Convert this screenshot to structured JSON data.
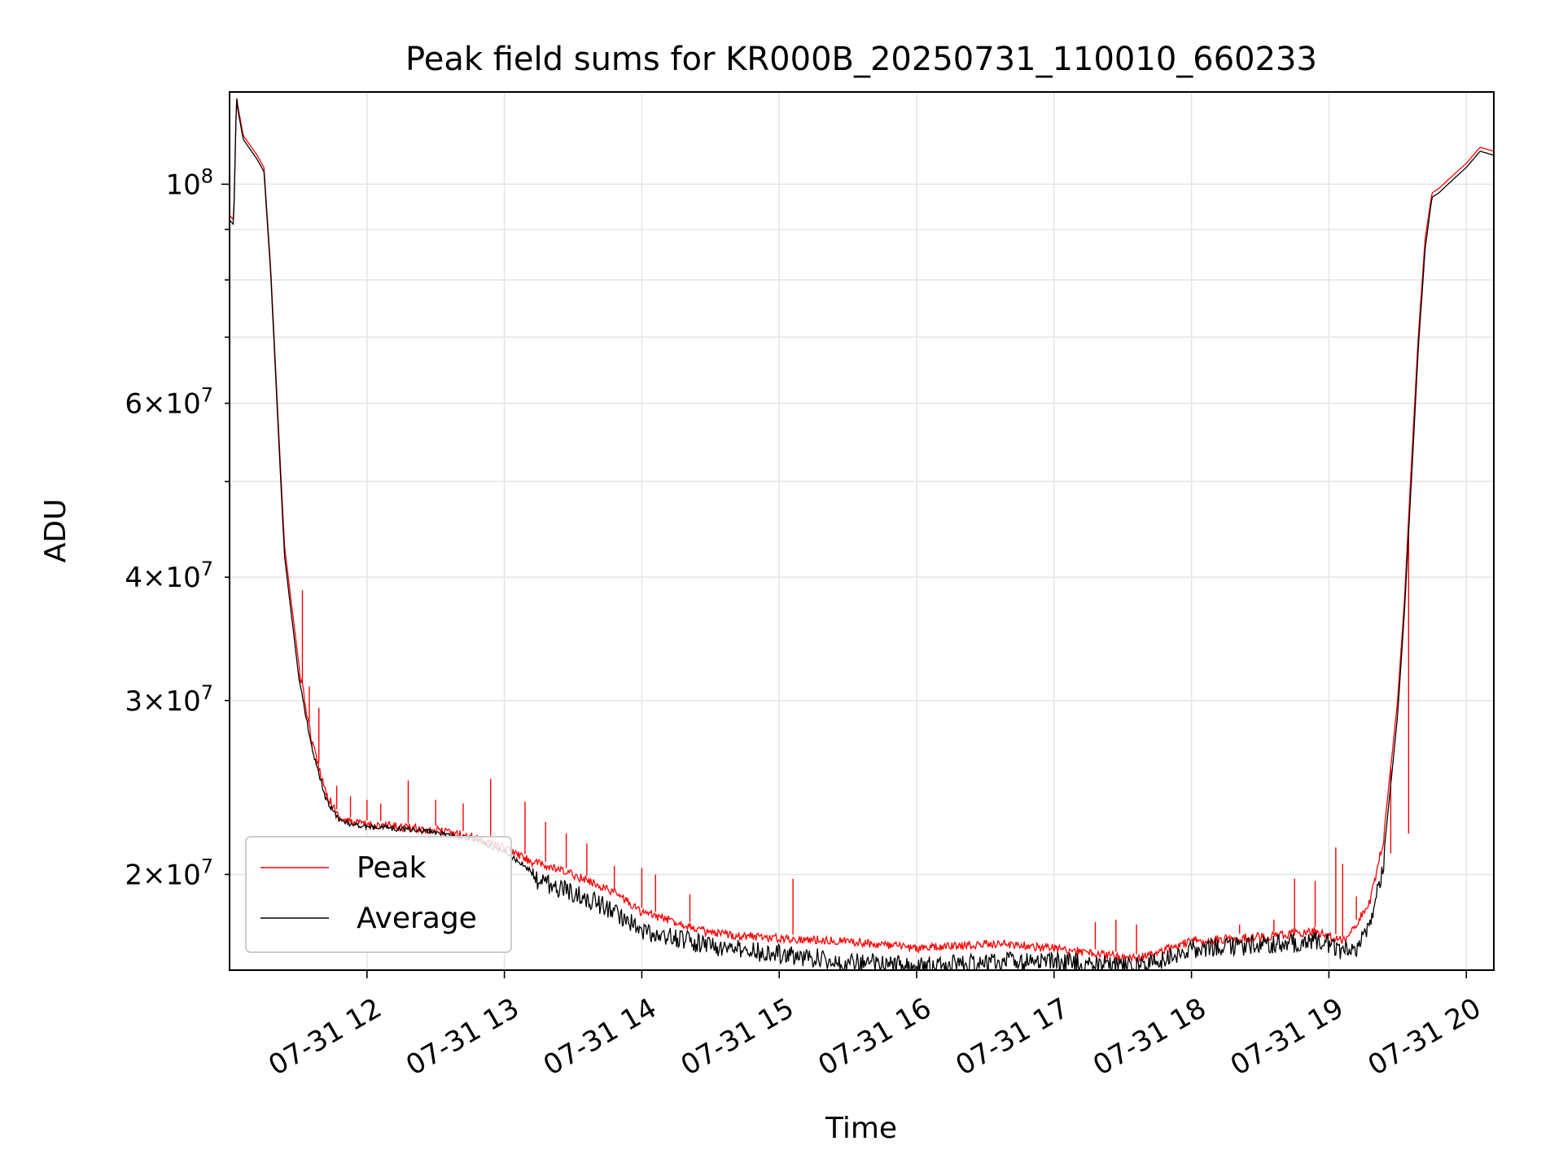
{
  "chart_data": {
    "type": "line",
    "title": "Peak field sums for KR000B_20250731_110010_660233",
    "xlabel": "Time",
    "ylabel": "ADU",
    "yscale": "log",
    "x_unit": "hours (time of day on 2025-07-31)",
    "xlim": [
      11.0,
      20.2
    ],
    "ylim": [
      16000000,
      124000000
    ],
    "grid": true,
    "legend_position": "lower-left",
    "x_ticks": [
      {
        "value": 12,
        "label": "07-31 12"
      },
      {
        "value": 13,
        "label": "07-31 13"
      },
      {
        "value": 14,
        "label": "07-31 14"
      },
      {
        "value": 15,
        "label": "07-31 15"
      },
      {
        "value": 16,
        "label": "07-31 16"
      },
      {
        "value": 17,
        "label": "07-31 17"
      },
      {
        "value": 18,
        "label": "07-31 18"
      },
      {
        "value": 19,
        "label": "07-31 19"
      },
      {
        "value": 20,
        "label": "07-31 20"
      }
    ],
    "y_major_ticks": [
      {
        "value": 100000000,
        "base": "10",
        "exp": "8"
      }
    ],
    "y_minor_ticks": [
      {
        "value": 20000000,
        "mantissa": "2",
        "base": "10",
        "exp": "7",
        "labeled": true
      },
      {
        "value": 30000000,
        "mantissa": "3",
        "base": "10",
        "exp": "7",
        "labeled": true
      },
      {
        "value": 40000000,
        "mantissa": "4",
        "base": "10",
        "exp": "7",
        "labeled": true
      },
      {
        "value": 50000000,
        "labeled": false
      },
      {
        "value": 60000000,
        "mantissa": "6",
        "base": "10",
        "exp": "7",
        "labeled": true
      },
      {
        "value": 70000000,
        "labeled": false
      },
      {
        "value": 80000000,
        "labeled": false
      },
      {
        "value": 90000000,
        "labeled": false
      }
    ],
    "series": [
      {
        "name": "Peak",
        "color": "#ff0000",
        "x": [
          11.0,
          11.03,
          11.05,
          11.06,
          11.1,
          11.2,
          11.25,
          11.3,
          11.35,
          11.4,
          11.5,
          11.6,
          11.7,
          11.8,
          11.9,
          12.0,
          12.2,
          12.5,
          12.8,
          13.0,
          13.2,
          13.5,
          13.8,
          14.0,
          14.3,
          14.5,
          14.8,
          15.0,
          15.5,
          16.0,
          16.3,
          16.6,
          17.0,
          17.3,
          17.6,
          17.9,
          18.0,
          18.3,
          18.6,
          18.9,
          19.0,
          19.1,
          19.2,
          19.3,
          19.4,
          19.5,
          19.55,
          19.6,
          19.65,
          19.7,
          19.75,
          19.8,
          19.9,
          20.0,
          20.1,
          20.2
        ],
        "y": [
          93000000,
          92000000,
          123000000,
          120000000,
          112000000,
          107000000,
          104000000,
          82000000,
          59000000,
          43000000,
          33000000,
          27500000,
          24500000,
          23000000,
          22800000,
          22700000,
          22600000,
          22400000,
          22000000,
          21500000,
          20800000,
          20200000,
          19400000,
          18500000,
          18000000,
          17600000,
          17500000,
          17400000,
          17300000,
          17000000,
          17100000,
          17200000,
          17000000,
          16800000,
          16600000,
          17100000,
          17300000,
          17400000,
          17500000,
          17700000,
          17500000,
          17300000,
          18000000,
          19000000,
          22000000,
          30000000,
          38000000,
          52000000,
          70000000,
          88000000,
          98000000,
          99000000,
          102000000,
          105000000,
          109000000,
          108000000
        ],
        "spikes": [
          {
            "x": 11.53,
            "y": 38800000
          },
          {
            "x": 11.58,
            "y": 31000000
          },
          {
            "x": 11.65,
            "y": 29500000
          },
          {
            "x": 11.78,
            "y": 24600000
          },
          {
            "x": 11.88,
            "y": 24000000
          },
          {
            "x": 12.0,
            "y": 23800000
          },
          {
            "x": 12.1,
            "y": 23600000
          },
          {
            "x": 12.3,
            "y": 24900000
          },
          {
            "x": 12.5,
            "y": 23800000
          },
          {
            "x": 12.7,
            "y": 23600000
          },
          {
            "x": 12.9,
            "y": 25000000
          },
          {
            "x": 13.15,
            "y": 23700000
          },
          {
            "x": 13.3,
            "y": 22600000
          },
          {
            "x": 13.45,
            "y": 22000000
          },
          {
            "x": 13.6,
            "y": 21500000
          },
          {
            "x": 13.8,
            "y": 20400000
          },
          {
            "x": 14.0,
            "y": 20300000
          },
          {
            "x": 14.1,
            "y": 20000000
          },
          {
            "x": 14.35,
            "y": 19100000
          },
          {
            "x": 15.1,
            "y": 19800000
          },
          {
            "x": 17.3,
            "y": 17900000
          },
          {
            "x": 17.45,
            "y": 18000000
          },
          {
            "x": 17.6,
            "y": 17800000
          },
          {
            "x": 18.35,
            "y": 17800000
          },
          {
            "x": 18.6,
            "y": 18000000
          },
          {
            "x": 18.75,
            "y": 19800000
          },
          {
            "x": 18.9,
            "y": 19700000
          },
          {
            "x": 19.05,
            "y": 21300000
          },
          {
            "x": 19.1,
            "y": 20500000
          },
          {
            "x": 19.2,
            "y": 19000000
          },
          {
            "x": 19.45,
            "y": 21000000
          },
          {
            "x": 19.58,
            "y": 22000000
          }
        ]
      },
      {
        "name": "Average",
        "color": "#000000",
        "x": [
          11.0,
          11.03,
          11.05,
          11.06,
          11.1,
          11.2,
          11.25,
          11.3,
          11.35,
          11.4,
          11.5,
          11.6,
          11.7,
          11.8,
          11.9,
          12.0,
          12.2,
          12.5,
          12.8,
          13.0,
          13.2,
          13.5,
          13.8,
          14.0,
          14.3,
          14.5,
          14.8,
          15.0,
          15.5,
          16.0,
          16.3,
          16.6,
          17.0,
          17.3,
          17.6,
          17.9,
          18.0,
          18.3,
          18.6,
          18.9,
          19.0,
          19.1,
          19.2,
          19.3,
          19.4,
          19.5,
          19.55,
          19.6,
          19.65,
          19.7,
          19.75,
          19.8,
          19.9,
          20.0,
          20.1,
          20.2
        ],
        "y": [
          92000000,
          91000000,
          123000000,
          119000000,
          111000000,
          106000000,
          103000000,
          81000000,
          58000000,
          42000000,
          32000000,
          27000000,
          24000000,
          22800000,
          22600000,
          22500000,
          22400000,
          22200000,
          21800000,
          21200000,
          20300000,
          19600000,
          18800000,
          17900000,
          17600000,
          17300000,
          17100000,
          17000000,
          16700000,
          16500000,
          16600000,
          16700000,
          16700000,
          16600000,
          16500000,
          17000000,
          17200000,
          17300000,
          17400000,
          17500000,
          17400000,
          17100000,
          17300000,
          18200000,
          21000000,
          29000000,
          37000000,
          50000000,
          68000000,
          86000000,
          97000000,
          98000000,
          101000000,
          104000000,
          108000000,
          107000000
        ]
      }
    ]
  }
}
